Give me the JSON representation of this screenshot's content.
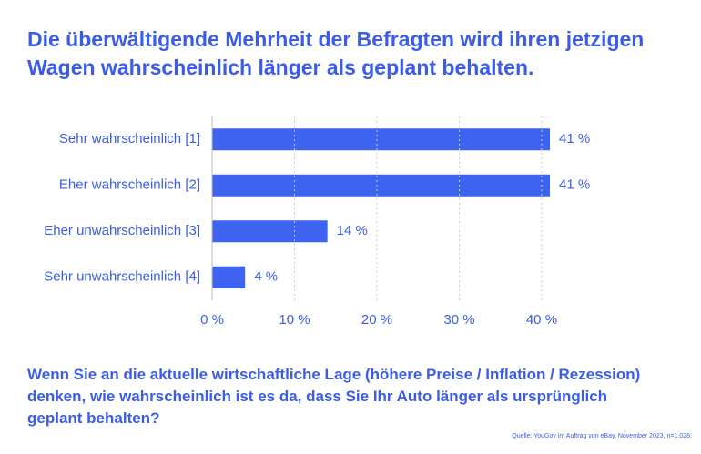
{
  "chart_data": {
    "type": "bar",
    "orientation": "horizontal",
    "title": "Die überwältigende Mehrheit der Befragten wird ihren jetzigen Wagen wahrscheinlich länger als geplant behalten.",
    "question": "Wenn Sie an die aktuelle wirtschaftliche Lage (höhere Preise / Inflation / Rezession) denken, wie wahrscheinlich ist es da, dass Sie Ihr Auto länger als ursprünglich geplant behalten?",
    "source": "Quelle: YouGov im Auftrag von eBay, November 2023, n=1.028.",
    "categories": [
      "Sehr wahrscheinlich [1]",
      "Eher wahrscheinlich [2]",
      "Eher unwahrscheinlich [3]",
      "Sehr unwahrscheinlich [4]"
    ],
    "values": [
      41,
      41,
      14,
      4
    ],
    "value_labels": [
      "41 %",
      "41 %",
      "14 %",
      "4 %"
    ],
    "color": "#3d63f0",
    "xlim": [
      0,
      41
    ],
    "xticks": [
      {
        "value": 0,
        "label": "0 %"
      },
      {
        "value": 10,
        "label": "10 %"
      },
      {
        "value": 20,
        "label": "20 %"
      },
      {
        "value": 30,
        "label": "30 %"
      },
      {
        "value": 40,
        "label": "40 %"
      }
    ],
    "grid": true
  }
}
